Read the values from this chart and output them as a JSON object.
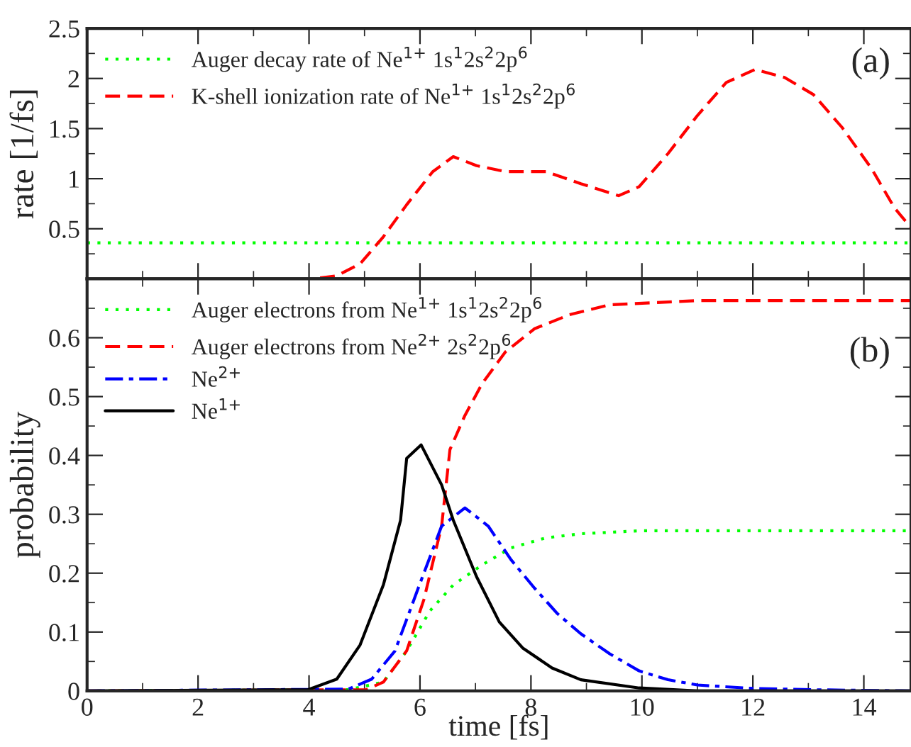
{
  "chart_data": [
    {
      "type": "line",
      "ylabel": "rate [1/fs]",
      "xlim": [
        0,
        14.85
      ],
      "ylim": [
        0,
        2.5
      ],
      "tick_labels": "y",
      "legend": "top left",
      "grid": false,
      "xticks": [
        0,
        {
          "value": 1,
          "label": null
        },
        2,
        {
          "value": 3,
          "label": null
        },
        4,
        {
          "value": 5,
          "label": null
        },
        6,
        {
          "value": 7,
          "label": null
        },
        8,
        {
          "value": 9,
          "label": null
        },
        10,
        {
          "value": 11,
          "label": null
        },
        12,
        {
          "value": 13,
          "label": null
        },
        14
      ],
      "yticks": [
        {
          "value": 0.25,
          "label": null
        },
        0.5,
        {
          "value": 0.75,
          "label": null
        },
        1,
        {
          "value": 1.25,
          "label": null
        },
        1.5,
        {
          "value": 1.75,
          "label": null
        },
        2,
        {
          "value": 2.25,
          "label": null
        },
        2.5
      ],
      "annotations": [
        "(a)"
      ],
      "series": [
        {
          "name": "Auger decay rate of Ne$^{1+}$ 1s$^{1}$2s$^{2}$2p$^{6}$",
          "color": "#00ff00",
          "line_style": "dotted",
          "x": [
            0,
            14.85
          ],
          "values": [
            0.36,
            0.36
          ]
        },
        {
          "name": "K-shell ionization rate of Ne$^{1+}$ 1s$^{1}$2s$^{2}$2p$^{6}$",
          "color": "#ff0000",
          "line_style": "dashed",
          "x": [
            4.2,
            4.5,
            4.92,
            5.34,
            5.76,
            6.23,
            6.6,
            7.02,
            7.54,
            8.27,
            8.9,
            9.58,
            9.95,
            10.47,
            11.0,
            11.52,
            12.04,
            12.57,
            13.09,
            13.61,
            14.14,
            14.55,
            14.85
          ],
          "values": [
            0.01,
            0.03,
            0.15,
            0.42,
            0.74,
            1.07,
            1.22,
            1.13,
            1.07,
            1.07,
            0.95,
            0.83,
            0.92,
            1.25,
            1.63,
            1.96,
            2.09,
            2.01,
            1.84,
            1.51,
            1.1,
            0.71,
            0.51
          ]
        }
      ]
    },
    {
      "type": "line",
      "xlabel": "time [fs]",
      "ylabel": "probability",
      "xlim": [
        0,
        14.85
      ],
      "ylim": [
        0,
        0.7
      ],
      "legend": "top left",
      "grid": false,
      "xticks": [
        0,
        {
          "value": 1,
          "label": null
        },
        2,
        {
          "value": 3,
          "label": null
        },
        4,
        {
          "value": 5,
          "label": null
        },
        6,
        {
          "value": 7,
          "label": null
        },
        8,
        {
          "value": 9,
          "label": null
        },
        10,
        {
          "value": 11,
          "label": null
        },
        12,
        {
          "value": 13,
          "label": null
        },
        14
      ],
      "yticks": [
        0,
        {
          "value": 0.05,
          "label": null
        },
        0.1,
        {
          "value": 0.15,
          "label": null
        },
        0.2,
        {
          "value": 0.25,
          "label": null
        },
        0.3,
        {
          "value": 0.35,
          "label": null
        },
        0.4,
        {
          "value": 0.45,
          "label": null
        },
        0.5,
        {
          "value": 0.55,
          "label": null
        },
        0.6,
        {
          "value": 0.65,
          "label": null
        }
      ],
      "annotations": [
        "(b)"
      ],
      "series": [
        {
          "name": "Auger electrons from Ne$^{1+}$ 1s$^{1}$2s$^{2}$2p$^{6}$",
          "color": "#00ff00",
          "line_style": "dotted",
          "x": [
            0,
            4.71,
            5.34,
            5.76,
            6.18,
            6.6,
            7.12,
            7.64,
            8.27,
            8.9,
            9.95,
            14.85
          ],
          "values": [
            0,
            0.002,
            0.015,
            0.068,
            0.136,
            0.18,
            0.214,
            0.243,
            0.26,
            0.267,
            0.272,
            0.272
          ]
        },
        {
          "name": "Auger electrons from Ne$^{2+}$ 2s$^{2}$2p$^{6}$",
          "color": "#ff0000",
          "line_style": "dashed",
          "x": [
            0,
            5.03,
            5.34,
            5.76,
            6.07,
            6.39,
            6.54,
            6.81,
            7.12,
            7.54,
            8.06,
            8.69,
            9.42,
            11.0,
            14.85
          ],
          "values": [
            0,
            0.002,
            0.015,
            0.068,
            0.155,
            0.28,
            0.41,
            0.468,
            0.522,
            0.576,
            0.615,
            0.639,
            0.656,
            0.663,
            0.663
          ]
        },
        {
          "name": "Ne$^{2+}$",
          "color": "#0000ff",
          "line_style": "dashdot",
          "x": [
            0,
            4.71,
            5.13,
            5.55,
            5.97,
            6.39,
            6.81,
            7.23,
            7.64,
            8.06,
            8.48,
            8.9,
            9.42,
            9.95,
            10.47,
            11.0,
            12.04,
            13.1,
            14.85
          ],
          "values": [
            0,
            0.003,
            0.02,
            0.068,
            0.175,
            0.28,
            0.311,
            0.28,
            0.223,
            0.175,
            0.131,
            0.097,
            0.063,
            0.034,
            0.019,
            0.01,
            0.004,
            0.002,
            0
          ]
        },
        {
          "name": "Ne$^{1+}$",
          "color": "#000000",
          "line_style": "solid",
          "x": [
            0,
            3.98,
            4.5,
            4.92,
            5.34,
            5.65,
            5.76,
            6.02,
            6.39,
            6.6,
            7.02,
            7.43,
            7.85,
            8.38,
            8.9,
            9.95,
            11.0,
            14.85
          ],
          "values": [
            0,
            0.002,
            0.02,
            0.078,
            0.18,
            0.29,
            0.395,
            0.418,
            0.35,
            0.29,
            0.194,
            0.117,
            0.073,
            0.039,
            0.019,
            0.005,
            0,
            0
          ]
        }
      ]
    }
  ]
}
